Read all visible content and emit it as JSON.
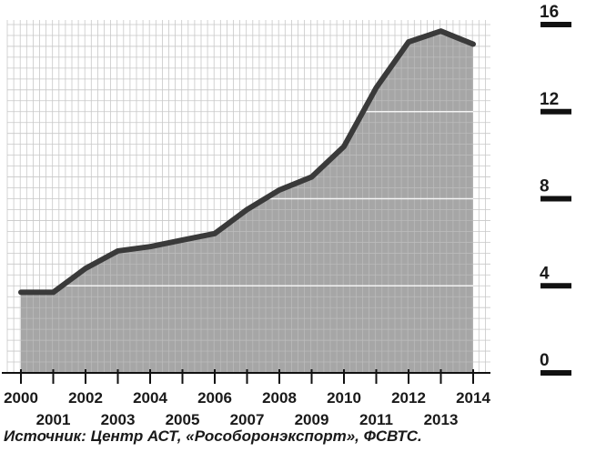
{
  "chart_data": {
    "type": "area",
    "x": [
      2000,
      2001,
      2002,
      2003,
      2004,
      2005,
      2006,
      2007,
      2008,
      2009,
      2010,
      2011,
      2012,
      2013,
      2014
    ],
    "values": [
      3.7,
      3.7,
      4.8,
      5.6,
      5.8,
      6.1,
      6.4,
      7.5,
      8.4,
      9.0,
      10.4,
      13.1,
      15.2,
      15.7,
      15.1
    ],
    "ylim": [
      0,
      16
    ],
    "yticks": [
      "0",
      "4",
      "8",
      "12",
      "16"
    ],
    "xticks_top": [
      "2000",
      "2002",
      "2004",
      "2006",
      "2008",
      "2010",
      "2012",
      "2014"
    ],
    "xticks_bottom": [
      "2001",
      "2003",
      "2005",
      "2007",
      "2009",
      "2011",
      "2013"
    ],
    "grid": true,
    "colors": {
      "fill": "#a6a6a6",
      "line": "#3a3a3a",
      "grid": "#c8c8c8",
      "axis": "#111111"
    }
  },
  "source_text": "Источник: Центр АСТ, «Рособоронэкспорт», ФСВТС."
}
